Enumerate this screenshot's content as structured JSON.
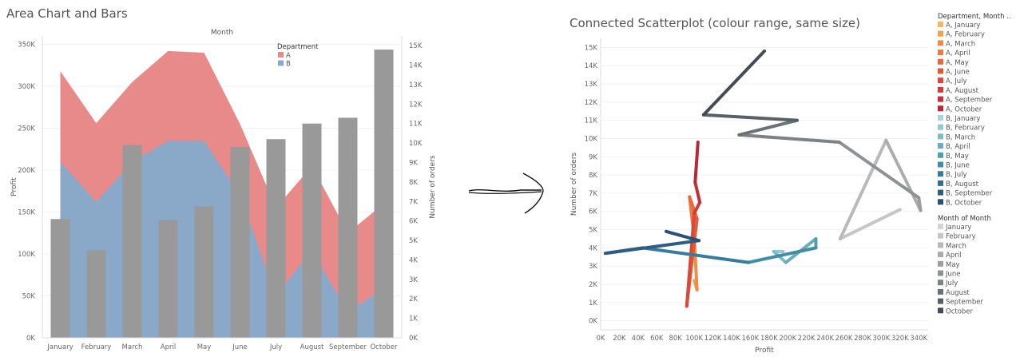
{
  "chart_data": [
    {
      "type": "area+bar",
      "title": "Area Chart and Bars",
      "xlabel": "Month",
      "ylabel": "Profit",
      "y2label": "Number of orders",
      "categories": [
        "January",
        "February",
        "March",
        "April",
        "May",
        "June",
        "July",
        "August",
        "September",
        "October"
      ],
      "ylim": [
        0,
        360000
      ],
      "y2lim": [
        0,
        15500
      ],
      "yticks": [
        "0K",
        "50K",
        "100K",
        "150K",
        "200K",
        "250K",
        "300K",
        "350K"
      ],
      "y2ticks": [
        "0K",
        "1K",
        "2K",
        "3K",
        "4K",
        "5K",
        "6K",
        "7K",
        "8K",
        "9K",
        "10K",
        "11K",
        "12K",
        "13K",
        "14K",
        "15K"
      ],
      "legend": {
        "title": "Department",
        "items": [
          "A",
          "B"
        ],
        "position": "top-right"
      },
      "area_series": [
        {
          "name": "A",
          "color": "#e8898a",
          "values": [
            318000,
            256000,
            305000,
            342000,
            340000,
            255000,
            155000,
            205000,
            125000,
            160000
          ]
        },
        {
          "name": "B",
          "color": "#8aa9c9",
          "values": [
            210000,
            162000,
            210000,
            235000,
            235000,
            170000,
            50000,
            105000,
            30000,
            60000
          ]
        }
      ],
      "bar_series": {
        "name": "Number of orders",
        "color": "#999999",
        "values": [
          6100,
          4500,
          9900,
          6050,
          6750,
          9800,
          10200,
          11000,
          11300,
          14800
        ]
      }
    },
    {
      "type": "scatter",
      "title": "Connected Scatterplot (colour range, same size)",
      "xlabel": "Profit",
      "ylabel": "Number of orders",
      "xlim": [
        0,
        350000
      ],
      "ylim": [
        -500,
        15500
      ],
      "xticks": [
        "0K",
        "20K",
        "40K",
        "60K",
        "80K",
        "100K",
        "120K",
        "140K",
        "160K",
        "180K",
        "200K",
        "220K",
        "240K",
        "260K",
        "280K",
        "300K",
        "320K",
        "340K"
      ],
      "yticks": [
        "0K",
        "1K",
        "2K",
        "3K",
        "4K",
        "5K",
        "6K",
        "7K",
        "8K",
        "9K",
        "10K",
        "11K",
        "12K",
        "13K",
        "14K",
        "15K"
      ],
      "legend1": {
        "title": "Department, Month ..",
        "items": [
          {
            "label": "A, January",
            "color": "#f6b55e"
          },
          {
            "label": "A, February",
            "color": "#f4a04f"
          },
          {
            "label": "A, March",
            "color": "#f28c44"
          },
          {
            "label": "A, April",
            "color": "#ef7a3e"
          },
          {
            "label": "A, May",
            "color": "#ea693c"
          },
          {
            "label": "A, June",
            "color": "#e35a3b"
          },
          {
            "label": "A, July",
            "color": "#da4a3a"
          },
          {
            "label": "A, August",
            "color": "#cf3b3a"
          },
          {
            "label": "A, September",
            "color": "#c43039"
          },
          {
            "label": "A, October",
            "color": "#b82838"
          },
          {
            "label": "B, January",
            "color": "#a7d5d9"
          },
          {
            "label": "B, February",
            "color": "#92c8cf"
          },
          {
            "label": "B, March",
            "color": "#7dbbc5"
          },
          {
            "label": "B, April",
            "color": "#67adbb"
          },
          {
            "label": "B, May",
            "color": "#529db0"
          },
          {
            "label": "B, June",
            "color": "#418da6"
          },
          {
            "label": "B, July",
            "color": "#377d9b"
          },
          {
            "label": "B, August",
            "color": "#316d8f"
          },
          {
            "label": "B, September",
            "color": "#2d5e82"
          },
          {
            "label": "B, October",
            "color": "#2a5075"
          }
        ]
      },
      "legend2": {
        "title": "Month of Month",
        "items": [
          {
            "label": "January",
            "color": "#d4d4d4"
          },
          {
            "label": "February",
            "color": "#c6c6c6"
          },
          {
            "label": "March",
            "color": "#b9b9b9"
          },
          {
            "label": "April",
            "color": "#acacac"
          },
          {
            "label": "May",
            "color": "#9e9e9e"
          },
          {
            "label": "June",
            "color": "#8f9193"
          },
          {
            "label": "July",
            "color": "#7d8286"
          },
          {
            "label": "August",
            "color": "#6a7177"
          },
          {
            "label": "September",
            "color": "#575f67"
          },
          {
            "label": "October",
            "color": "#434c56"
          }
        ]
      },
      "series": [
        {
          "name": "A",
          "points": [
            [
              100000,
              2200
            ],
            [
              103000,
              1700
            ],
            [
              100000,
              4600
            ],
            [
              95000,
              6800
            ],
            [
              103000,
              5600
            ],
            [
              92000,
              800
            ],
            [
              100000,
              5900
            ],
            [
              106000,
              6500
            ],
            [
              101000,
              7600
            ],
            [
              104000,
              9800
            ]
          ],
          "colors": [
            "#f6b55e",
            "#f4a04f",
            "#f28c44",
            "#ef7a3e",
            "#ea693c",
            "#e35a3b",
            "#da4a3a",
            "#cf3b3a",
            "#c43039",
            "#b82838"
          ]
        },
        {
          "name": "B",
          "points": [
            [
              195000,
              3800
            ],
            [
              185000,
              3800
            ],
            [
              198000,
              3200
            ],
            [
              230000,
              4500
            ],
            [
              230000,
              4000
            ],
            [
              158000,
              3200
            ],
            [
              45000,
              4000
            ],
            [
              5000,
              3700
            ],
            [
              105000,
              4400
            ],
            [
              70000,
              4900
            ]
          ],
          "colors": [
            "#a7d5d9",
            "#92c8cf",
            "#7dbbc5",
            "#67adbb",
            "#529db0",
            "#418da6",
            "#377d9b",
            "#316d8f",
            "#2d5e82",
            "#2a5075"
          ]
        },
        {
          "name": "Total",
          "points": [
            [
              320000,
              6100
            ],
            [
              256000,
              4500
            ],
            [
              305000,
              9900
            ],
            [
              342000,
              6050
            ],
            [
              340000,
              6750
            ],
            [
              255000,
              9800
            ],
            [
              148000,
              10200
            ],
            [
              210000,
              11000
            ],
            [
              110000,
              11300
            ],
            [
              175000,
              14800
            ]
          ],
          "colors": [
            "#d4d4d4",
            "#c6c6c6",
            "#b9b9b9",
            "#acacac",
            "#9e9e9e",
            "#8f9193",
            "#7d8286",
            "#6a7177",
            "#575f67",
            "#434c56"
          ]
        }
      ]
    }
  ]
}
